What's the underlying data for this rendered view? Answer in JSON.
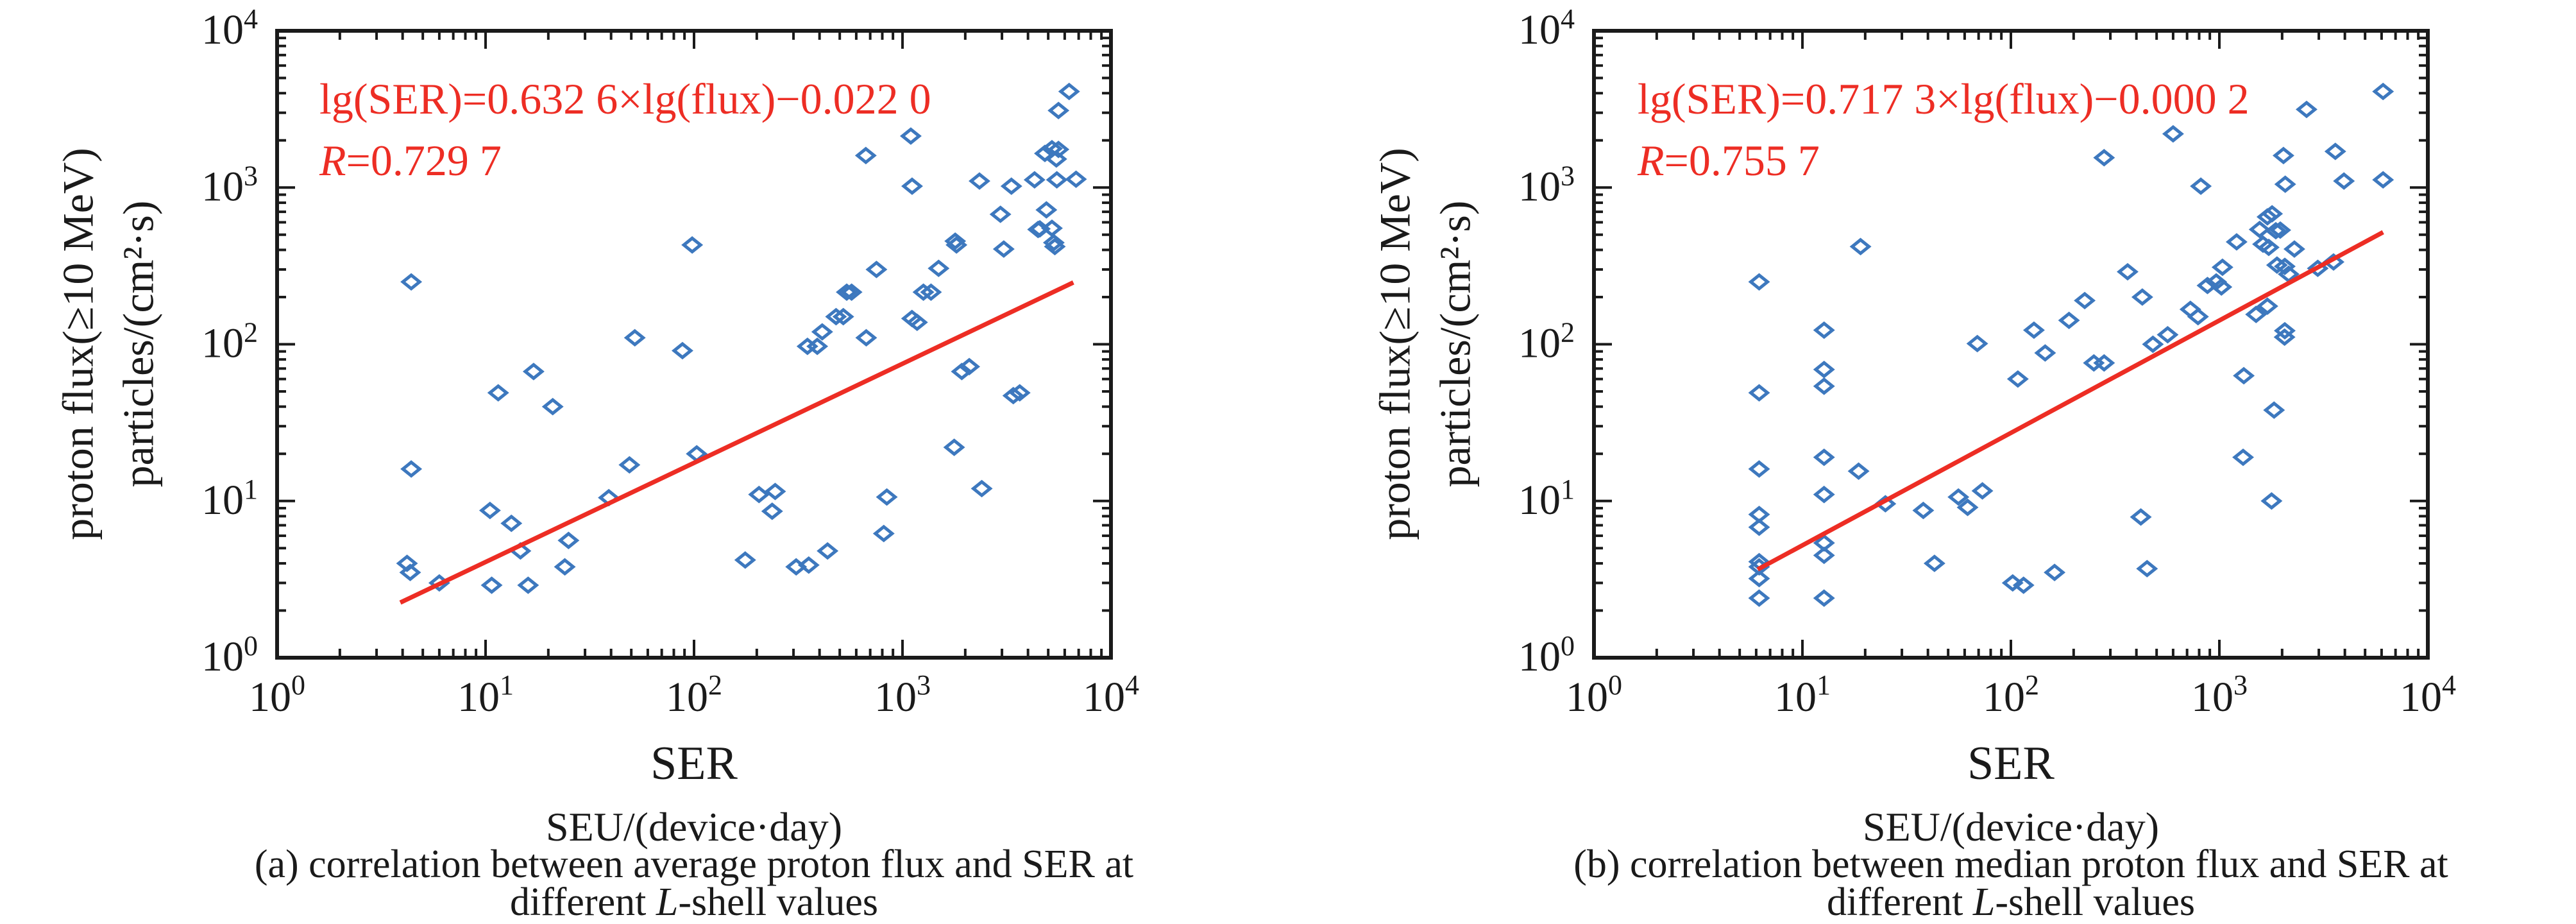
{
  "figure_background": "#ffffff",
  "colors": {
    "marker_blue": "#3D78BE",
    "fit_red": "#ED2D24",
    "axis_black": "#1a1a1a"
  },
  "chart_data": [
    {
      "type": "scatter",
      "panel_id": "a",
      "x_scale": "log",
      "y_scale": "log",
      "xlim": [
        1,
        10000
      ],
      "ylim": [
        1,
        10000
      ],
      "x_tick_labels": [
        "10^0",
        "10^1",
        "10^2",
        "10^3",
        "10^4"
      ],
      "y_tick_labels": [
        "10^0",
        "10^1",
        "10^2",
        "10^3",
        "10^4"
      ],
      "xlabel": "SER",
      "xlabel2": "SEU/(device·day)",
      "ylabel_line1": "proton flux(≥10 MeV)",
      "ylabel_line2": "particles/(cm²·s)",
      "marker": "open-diamond",
      "marker_color": "#3D78BE",
      "grid": false,
      "fit_line": {
        "color": "#ED2D24",
        "slope": 0.6326,
        "intercept": -0.022,
        "x_start": 3.9,
        "x_end": 6600,
        "equation_text": "lg(SER)=0.632 6×lg(flux)−0.022 0",
        "r_label": "R",
        "r_value": "=0.729 7"
      },
      "caption": {
        "line1": "(a) correlation between average proton flux and SER at",
        "line2_pre": "different ",
        "line2_italic": "L",
        "line2_post": "-shell values"
      },
      "points": [
        [
          4.4,
          250
        ],
        [
          4.4,
          16
        ],
        [
          4.2,
          4
        ],
        [
          4.35,
          3.5
        ],
        [
          6,
          3
        ],
        [
          10.5,
          8.7
        ],
        [
          10.7,
          2.9
        ],
        [
          11.5,
          49
        ],
        [
          13.3,
          7.2
        ],
        [
          14.7,
          4.8
        ],
        [
          16,
          2.9
        ],
        [
          17,
          67
        ],
        [
          21,
          40
        ],
        [
          24,
          3.8
        ],
        [
          25,
          5.6
        ],
        [
          39,
          10.5
        ],
        [
          49,
          17
        ],
        [
          52,
          110
        ],
        [
          88,
          91
        ],
        [
          98,
          430
        ],
        [
          103,
          20
        ],
        [
          176,
          4.2
        ],
        [
          205,
          11
        ],
        [
          237,
          8.6
        ],
        [
          245,
          11.5
        ],
        [
          309,
          3.8
        ],
        [
          355,
          3.9
        ],
        [
          350,
          97
        ],
        [
          390,
          97
        ],
        [
          412,
          120
        ],
        [
          437,
          4.8
        ],
        [
          480,
          150
        ],
        [
          520,
          150
        ],
        [
          540,
          215
        ],
        [
          570,
          215
        ],
        [
          667,
          1600
        ],
        [
          670,
          110
        ],
        [
          750,
          300
        ],
        [
          813,
          6.2
        ],
        [
          841,
          10.6
        ],
        [
          1096,
          2130
        ],
        [
          1112,
          1020
        ],
        [
          1110,
          146
        ],
        [
          1175,
          138
        ],
        [
          1260,
          215
        ],
        [
          1370,
          215
        ],
        [
          1490,
          305
        ],
        [
          1770,
          22
        ],
        [
          1925,
          67
        ],
        [
          2090,
          72
        ],
        [
          2400,
          12
        ],
        [
          3400,
          47
        ],
        [
          3650,
          49
        ],
        [
          6300,
          4100
        ],
        [
          5600,
          3100
        ],
        [
          4820,
          1650
        ],
        [
          5210,
          1770
        ],
        [
          5600,
          1750
        ],
        [
          5470,
          1520
        ],
        [
          2340,
          1100
        ],
        [
          3330,
          1020
        ],
        [
          4300,
          1120
        ],
        [
          5500,
          1120
        ],
        [
          6800,
          1130
        ],
        [
          2950,
          675
        ],
        [
          4900,
          720
        ],
        [
          4470,
          540
        ],
        [
          4560,
          545
        ],
        [
          5210,
          550
        ],
        [
          5320,
          445
        ],
        [
          5380,
          420
        ],
        [
          1790,
          455
        ],
        [
          1815,
          430
        ],
        [
          3060,
          405
        ]
      ]
    },
    {
      "type": "scatter",
      "panel_id": "b",
      "x_scale": "log",
      "y_scale": "log",
      "xlim": [
        1,
        10000
      ],
      "ylim": [
        1,
        10000
      ],
      "x_tick_labels": [
        "10^0",
        "10^1",
        "10^2",
        "10^3",
        "10^4"
      ],
      "y_tick_labels": [
        "10^0",
        "10^1",
        "10^2",
        "10^3",
        "10^4"
      ],
      "xlabel": "SER",
      "xlabel2": "SEU/(device·day)",
      "ylabel_line1": "proton flux(≥10 MeV)",
      "ylabel_line2": "particles/(cm²·s)",
      "marker": "open-diamond",
      "marker_color": "#3D78BE",
      "grid": false,
      "fit_line": {
        "color": "#ED2D24",
        "slope": 0.7173,
        "intercept": -0.0002,
        "x_start": 6.1,
        "x_end": 6100,
        "equation_text": "lg(SER)=0.717 3×lg(flux)−0.000 2",
        "r_label": "R",
        "r_value": "=0.755 7"
      },
      "caption": {
        "line1": "(b) correlation between median proton flux and SER at",
        "line2_pre": "different ",
        "line2_italic": "L",
        "line2_post": "-shell values"
      },
      "points": [
        [
          6.2,
          250
        ],
        [
          6.2,
          49
        ],
        [
          6.2,
          16
        ],
        [
          6.2,
          8.2
        ],
        [
          6.2,
          6.8
        ],
        [
          6.2,
          4.1
        ],
        [
          6.2,
          3.8
        ],
        [
          6.2,
          3.2
        ],
        [
          6.2,
          2.4
        ],
        [
          12.7,
          123
        ],
        [
          12.7,
          69
        ],
        [
          12.7,
          54
        ],
        [
          12.7,
          19
        ],
        [
          12.7,
          11
        ],
        [
          12.7,
          5.4
        ],
        [
          12.7,
          4.5
        ],
        [
          12.7,
          2.4
        ],
        [
          18.6,
          15.5
        ],
        [
          19,
          420
        ],
        [
          25,
          9.6
        ],
        [
          38,
          8.7
        ],
        [
          43,
          4
        ],
        [
          56,
          10.6
        ],
        [
          62,
          9.1
        ],
        [
          69,
          101
        ],
        [
          73,
          11.6
        ],
        [
          102,
          3
        ],
        [
          108,
          60
        ],
        [
          115,
          2.9
        ],
        [
          129,
          123
        ],
        [
          146,
          88
        ],
        [
          162,
          3.5
        ],
        [
          190,
          142
        ],
        [
          226,
          190
        ],
        [
          250,
          76
        ],
        [
          280,
          76
        ],
        [
          280,
          1550
        ],
        [
          363,
          290
        ],
        [
          420,
          7.9
        ],
        [
          427,
          200
        ],
        [
          450,
          3.7
        ],
        [
          480,
          100
        ],
        [
          565,
          115
        ],
        [
          600,
          2200
        ],
        [
          726,
          167
        ],
        [
          790,
          150
        ],
        [
          815,
          1020
        ],
        [
          877,
          237
        ],
        [
          966,
          250
        ],
        [
          1023,
          232
        ],
        [
          1035,
          310
        ],
        [
          1210,
          450
        ],
        [
          1310,
          63
        ],
        [
          1500,
          155
        ],
        [
          1560,
          540
        ],
        [
          1620,
          435
        ],
        [
          1700,
          650
        ],
        [
          1700,
          175
        ],
        [
          1725,
          415
        ],
        [
          1790,
          680
        ],
        [
          1830,
          38
        ],
        [
          1865,
          530
        ],
        [
          1890,
          320
        ],
        [
          1960,
          535
        ],
        [
          2055,
          111
        ],
        [
          2060,
          122
        ],
        [
          2060,
          314
        ],
        [
          2150,
          280
        ],
        [
          2290,
          405
        ],
        [
          1300,
          19
        ],
        [
          1780,
          10
        ],
        [
          2965,
          305
        ],
        [
          3530,
          335
        ],
        [
          2030,
          1600
        ],
        [
          2070,
          1050
        ],
        [
          2620,
          3150
        ],
        [
          3600,
          1700
        ],
        [
          3960,
          1100
        ],
        [
          6100,
          1120
        ],
        [
          6100,
          4100
        ]
      ]
    }
  ]
}
